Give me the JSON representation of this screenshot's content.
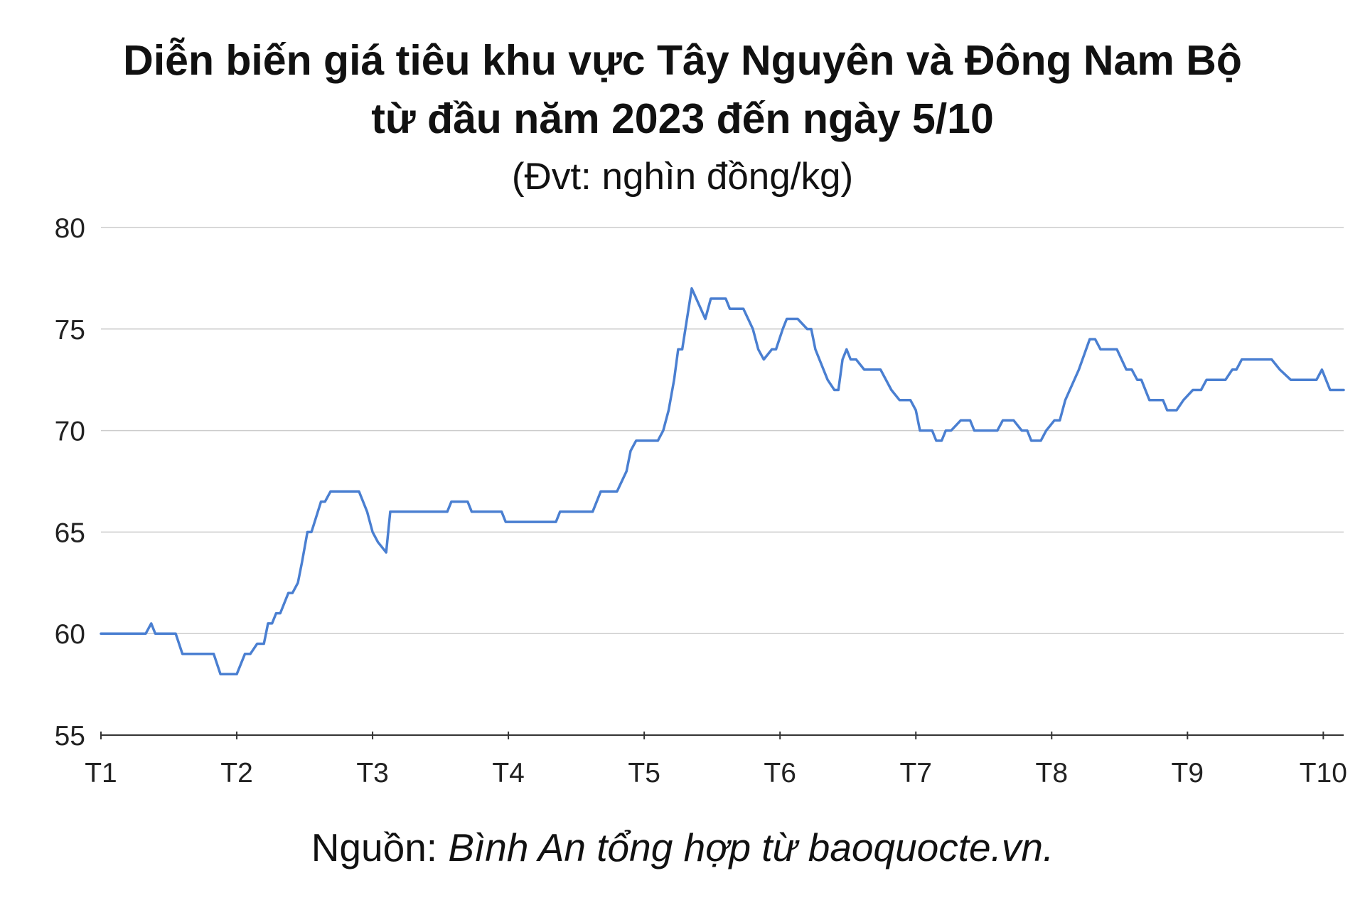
{
  "title_line1": "Diễn biến giá tiêu khu vực Tây Nguyên và Đông Nam Bộ",
  "title_line2": "từ đầu năm 2023 đến ngày 5/10",
  "subtitle": "(Đvt: nghìn đồng/kg)",
  "source_label": "Nguồn:",
  "source_text": "Bình An tổng hợp từ baoquocte.vn.",
  "line_color": "#4a7fd1",
  "chart_data": {
    "type": "line",
    "title": "Diễn biến giá tiêu khu vực Tây Nguyên và Đông Nam Bộ từ đầu năm 2023 đến ngày 5/10",
    "subtitle": "(Đvt: nghìn đồng/kg)",
    "xlabel": "",
    "ylabel": "",
    "x_ticks": [
      "T1",
      "T2",
      "T3",
      "T4",
      "T5",
      "T6",
      "T7",
      "T8",
      "T9",
      "T10"
    ],
    "xlim": [
      1,
      10.15
    ],
    "ylim": [
      55,
      80
    ],
    "y_ticks": [
      55,
      60,
      65,
      70,
      75,
      80
    ],
    "grid": true,
    "series": [
      {
        "values": [
          [
            1.0,
            60.0
          ],
          [
            1.33,
            60.0
          ],
          [
            1.37,
            60.5
          ],
          [
            1.4,
            60.0
          ],
          [
            1.55,
            60.0
          ],
          [
            1.6,
            59.0
          ],
          [
            1.83,
            59.0
          ],
          [
            1.88,
            58.0
          ],
          [
            2.0,
            58.0
          ],
          [
            2.06,
            59.0
          ],
          [
            2.1,
            59.0
          ],
          [
            2.15,
            59.5
          ],
          [
            2.2,
            59.5
          ],
          [
            2.23,
            60.5
          ],
          [
            2.26,
            60.5
          ],
          [
            2.29,
            61.0
          ],
          [
            2.32,
            61.0
          ],
          [
            2.38,
            62.0
          ],
          [
            2.41,
            62.0
          ],
          [
            2.45,
            62.5
          ],
          [
            2.48,
            63.5
          ],
          [
            2.52,
            65.0
          ],
          [
            2.55,
            65.0
          ],
          [
            2.62,
            66.5
          ],
          [
            2.65,
            66.5
          ],
          [
            2.69,
            67.0
          ],
          [
            2.9,
            67.0
          ],
          [
            2.96,
            66.0
          ],
          [
            3.0,
            65.0
          ],
          [
            3.04,
            64.5
          ],
          [
            3.1,
            64.0
          ],
          [
            3.13,
            66.0
          ],
          [
            3.55,
            66.0
          ],
          [
            3.58,
            66.5
          ],
          [
            3.7,
            66.5
          ],
          [
            3.73,
            66.0
          ],
          [
            3.95,
            66.0
          ],
          [
            3.98,
            65.5
          ],
          [
            4.35,
            65.5
          ],
          [
            4.38,
            66.0
          ],
          [
            4.62,
            66.0
          ],
          [
            4.68,
            67.0
          ],
          [
            4.8,
            67.0
          ],
          [
            4.87,
            68.0
          ],
          [
            4.9,
            69.0
          ],
          [
            4.94,
            69.5
          ],
          [
            5.1,
            69.5
          ],
          [
            5.14,
            70.0
          ],
          [
            5.18,
            71.0
          ],
          [
            5.22,
            72.5
          ],
          [
            5.25,
            74.0
          ],
          [
            5.28,
            74.0
          ],
          [
            5.35,
            77.0
          ],
          [
            5.45,
            75.5
          ],
          [
            5.49,
            76.5
          ],
          [
            5.6,
            76.5
          ],
          [
            5.63,
            76.0
          ],
          [
            5.73,
            76.0
          ],
          [
            5.8,
            75.0
          ],
          [
            5.84,
            74.0
          ],
          [
            5.88,
            73.5
          ],
          [
            5.94,
            74.0
          ],
          [
            5.97,
            74.0
          ],
          [
            6.02,
            75.0
          ],
          [
            6.05,
            75.5
          ],
          [
            6.13,
            75.5
          ],
          [
            6.2,
            75.0
          ],
          [
            6.23,
            75.0
          ],
          [
            6.26,
            74.0
          ],
          [
            6.35,
            72.5
          ],
          [
            6.4,
            72.0
          ],
          [
            6.43,
            72.0
          ],
          [
            6.46,
            73.5
          ],
          [
            6.49,
            74.0
          ],
          [
            6.52,
            73.5
          ],
          [
            6.56,
            73.5
          ],
          [
            6.62,
            73.0
          ],
          [
            6.74,
            73.0
          ],
          [
            6.82,
            72.0
          ],
          [
            6.88,
            71.5
          ],
          [
            6.96,
            71.5
          ],
          [
            7.0,
            71.0
          ],
          [
            7.03,
            70.0
          ],
          [
            7.12,
            70.0
          ],
          [
            7.15,
            69.5
          ],
          [
            7.19,
            69.5
          ],
          [
            7.22,
            70.0
          ],
          [
            7.26,
            70.0
          ],
          [
            7.33,
            70.5
          ],
          [
            7.4,
            70.5
          ],
          [
            7.43,
            70.0
          ],
          [
            7.6,
            70.0
          ],
          [
            7.64,
            70.5
          ],
          [
            7.72,
            70.5
          ],
          [
            7.78,
            70.0
          ],
          [
            7.82,
            70.0
          ],
          [
            7.85,
            69.5
          ],
          [
            7.92,
            69.5
          ],
          [
            7.96,
            70.0
          ],
          [
            8.02,
            70.5
          ],
          [
            8.06,
            70.5
          ],
          [
            8.1,
            71.5
          ],
          [
            8.2,
            73.0
          ],
          [
            8.28,
            74.5
          ],
          [
            8.32,
            74.5
          ],
          [
            8.36,
            74.0
          ],
          [
            8.48,
            74.0
          ],
          [
            8.55,
            73.0
          ],
          [
            8.59,
            73.0
          ],
          [
            8.63,
            72.5
          ],
          [
            8.66,
            72.5
          ],
          [
            8.72,
            71.5
          ],
          [
            8.82,
            71.5
          ],
          [
            8.85,
            71.0
          ],
          [
            8.92,
            71.0
          ],
          [
            8.97,
            71.5
          ],
          [
            9.04,
            72.0
          ],
          [
            9.1,
            72.0
          ],
          [
            9.14,
            72.5
          ],
          [
            9.28,
            72.5
          ],
          [
            9.33,
            73.0
          ],
          [
            9.36,
            73.0
          ],
          [
            9.4,
            73.5
          ],
          [
            9.62,
            73.5
          ],
          [
            9.68,
            73.0
          ],
          [
            9.76,
            72.5
          ],
          [
            9.95,
            72.5
          ],
          [
            9.99,
            73.0
          ],
          [
            10.05,
            72.0
          ],
          [
            10.15,
            72.0
          ]
        ]
      }
    ]
  }
}
